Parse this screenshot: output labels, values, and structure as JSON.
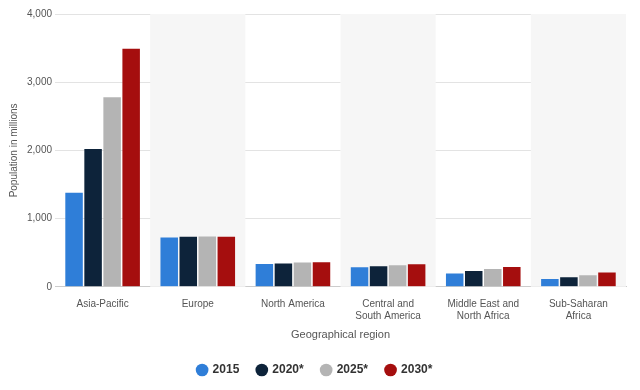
{
  "chart_data": {
    "type": "bar",
    "categories": [
      "Asia-Pacific",
      "Europe",
      "North America",
      "Central and South America",
      "Middle East and North Africa",
      "Sub-Saharan Africa"
    ],
    "series": [
      {
        "name": "2015",
        "color": "#2f7ed8",
        "values": [
          1380,
          724,
          335,
          285,
          195,
          115
        ]
      },
      {
        "name": "2020*",
        "color": "#0d233a",
        "values": [
          2020,
          734,
          340,
          300,
          230,
          140
        ]
      },
      {
        "name": "2025*",
        "color": "#b4b4b4",
        "values": [
          2780,
          736,
          355,
          315,
          260,
          170
        ]
      },
      {
        "name": "2030*",
        "color": "#a50e0e",
        "values": [
          3490,
          734,
          360,
          330,
          290,
          210
        ]
      }
    ],
    "x_label": "Geographical region",
    "y_label": "Population in millions",
    "ylim": [
      0,
      4000
    ],
    "yticks": [
      0,
      {
        "value": 1000,
        "label": "1,000"
      },
      {
        "value": 2000,
        "label": "2,000"
      },
      {
        "value": 3000,
        "label": "3,000"
      },
      {
        "value": 4000,
        "label": "4,000"
      }
    ],
    "grid": true,
    "legend": "bottom"
  }
}
